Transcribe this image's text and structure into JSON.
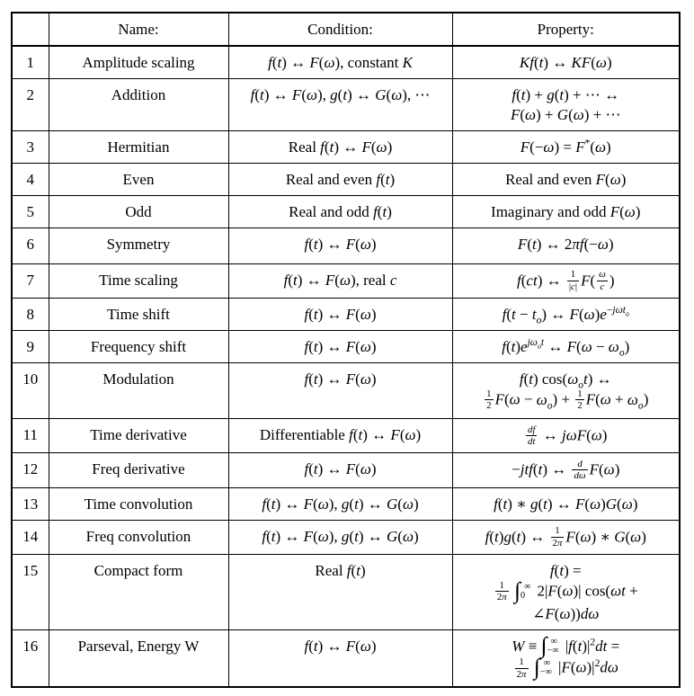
{
  "table": {
    "headers": [
      "",
      "Name:",
      "Condition:",
      "Property:"
    ],
    "rows": [
      {
        "num": "1",
        "name": "Amplitude scaling",
        "condition_html": "<i>f</i>(<i>t</i>) ↔ <i>F</i>(<i>ω</i>), constant <i>K</i>",
        "property_html": "<i>Kf</i>(<i>t</i>) ↔ <i>KF</i>(<i>ω</i>)"
      },
      {
        "num": "2",
        "name": "Addition",
        "condition_html": "<i>f</i>(<i>t</i>) ↔ <i>F</i>(<i>ω</i>), <i>g</i>(<i>t</i>) ↔ <i>G</i>(<i>ω</i>), ⋯",
        "property_html": "<i>f</i>(<i>t</i>) + <i>g</i>(<i>t</i>) + ⋯ ↔<br><i>F</i>(<i>ω</i>) + <i>G</i>(<i>ω</i>) + ⋯"
      },
      {
        "num": "3",
        "name": "Hermitian",
        "condition_html": "Real <i>f</i>(<i>t</i>) ↔ <i>F</i>(<i>ω</i>)",
        "property_html": "<i>F</i>(−<i>ω</i>) = <i>F</i><sup>*</sup>(<i>ω</i>)"
      },
      {
        "num": "4",
        "name": "Even",
        "condition_html": "Real and even <i>f</i>(<i>t</i>)",
        "property_html": "Real and even <i>F</i>(<i>ω</i>)"
      },
      {
        "num": "5",
        "name": "Odd",
        "condition_html": "Real and odd <i>f</i>(<i>t</i>)",
        "property_html": "Imaginary and odd <i>F</i>(<i>ω</i>)"
      },
      {
        "num": "6",
        "name": "Symmetry",
        "condition_html": "<i>f</i>(<i>t</i>) ↔ <i>F</i>(<i>ω</i>)",
        "property_html": "<i>F</i>(<i>t</i>) ↔ 2<i>πf</i>(−<i>ω</i>)"
      },
      {
        "num": "7",
        "name": "Time scaling",
        "condition_html": "<i>f</i>(<i>t</i>) ↔ <i>F</i>(<i>ω</i>), real <i>c</i>",
        "property_html": "<i>f</i>(<i>ct</i>) ↔ <span class='frac'><span>1</span><span>|<i>c</i>|</span></span><i>F</i>(<span class='frac'><span><i>ω</i></span><span><i>c</i></span></span>)"
      },
      {
        "num": "8",
        "name": "Time shift",
        "condition_html": "<i>f</i>(<i>t</i>) ↔ <i>F</i>(<i>ω</i>)",
        "property_html": "<i>f</i>(<i>t</i> − <i>t<sub>o</sub></i>) ↔ <i>F</i>(<i>ω</i>)<i>e</i><sup>−<i>jωt<sub>o</sub></i></sup>"
      },
      {
        "num": "9",
        "name": "Frequency shift",
        "condition_html": "<i>f</i>(<i>t</i>) ↔ <i>F</i>(<i>ω</i>)",
        "property_html": "<i>f</i>(<i>t</i>)<i>e</i><sup><i>jω<sub>o</sub>t</i></sup> ↔ <i>F</i>(<i>ω</i> − <i>ω<sub>o</sub></i>)"
      },
      {
        "num": "10",
        "name": "Modulation",
        "condition_html": "<i>f</i>(<i>t</i>) ↔ <i>F</i>(<i>ω</i>)",
        "property_html": "<i>f</i>(<i>t</i>) cos(<i>ω<sub>o</sub>t</i>) ↔<br><span class='frac'><span>1</span><span>2</span></span><i>F</i>(<i>ω</i> − <i>ω<sub>o</sub></i>) + <span class='frac'><span>1</span><span>2</span></span><i>F</i>(<i>ω</i> + <i>ω<sub>o</sub></i>)"
      },
      {
        "num": "11",
        "name": "Time derivative",
        "condition_html": "Differentiable <i>f</i>(<i>t</i>) ↔ <i>F</i>(<i>ω</i>)",
        "property_html": "<span class='frac'><span><i>df</i></span><span><i>dt</i></span></span> ↔ <i>jωF</i>(<i>ω</i>)"
      },
      {
        "num": "12",
        "name": "Freq derivative",
        "condition_html": "<i>f</i>(<i>t</i>) ↔ <i>F</i>(<i>ω</i>)",
        "property_html": "−<i>jtf</i>(<i>t</i>) ↔ <span class='frac'><span><i>d</i></span><span><i>dω</i></span></span><i>F</i>(<i>ω</i>)"
      },
      {
        "num": "13",
        "name": "Time convolution",
        "condition_html": "<i>f</i>(<i>t</i>) ↔ <i>F</i>(<i>ω</i>), <i>g</i>(<i>t</i>) ↔ <i>G</i>(<i>ω</i>)",
        "property_html": "<i>f</i>(<i>t</i>) ∗ <i>g</i>(<i>t</i>) ↔ <i>F</i>(<i>ω</i>)<i>G</i>(<i>ω</i>)"
      },
      {
        "num": "14",
        "name": "Freq convolution",
        "condition_html": "<i>f</i>(<i>t</i>) ↔ <i>F</i>(<i>ω</i>), <i>g</i>(<i>t</i>) ↔ <i>G</i>(<i>ω</i>)",
        "property_html": "<i>f</i>(<i>t</i>)<i>g</i>(<i>t</i>) ↔ <span class='frac'><span>1</span><span>2<i>π</i></span></span><i>F</i>(<i>ω</i>) ∗ <i>G</i>(<i>ω</i>)"
      },
      {
        "num": "15",
        "name": "Compact form",
        "condition_html": "Real <i>f</i>(<i>t</i>)",
        "property_html": "<i>f</i>(<i>t</i>) =<br><span class='frac'><span>1</span><span>2<i>π</i></span></span> <span class='intg'>∫</span><span class='lims'><span>∞</span><span>0</span></span> 2|<i>F</i>(<i>ω</i>)| cos(<i>ωt</i> +<br>∠<i>F</i>(<i>ω</i>))<i>dω</i>"
      },
      {
        "num": "16",
        "name": "Parseval, Energy W",
        "condition_html": "<i>f</i>(<i>t</i>) ↔ <i>F</i>(<i>ω</i>)",
        "property_html": "<i>W</i> ≡ <span class='intg'>∫</span><span class='lims'><span>∞</span><span>−∞</span></span> |<i>f</i>(<i>t</i>)|<sup>2</sup><i>dt</i> =<br><span class='frac'><span>1</span><span>2<i>π</i></span></span> <span class='intg'>∫</span><span class='lims'><span>∞</span><span>−∞</span></span> |<i>F</i>(<i>ω</i>)|<sup>2</sup><i>dω</i>"
      }
    ]
  }
}
